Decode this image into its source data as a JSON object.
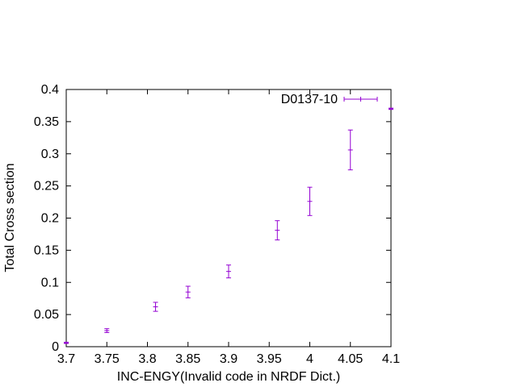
{
  "chart_data": {
    "type": "scatter",
    "title": "",
    "xlabel": "INC-ENGY(Invalid code in NRDF Dict.)",
    "ylabel": "Total Cross section",
    "xlim": [
      3.7,
      4.1
    ],
    "ylim": [
      0,
      0.4
    ],
    "x_ticks": [
      "3.7",
      "3.75",
      "3.8",
      "3.85",
      "3.9",
      "3.95",
      "4",
      "4.05",
      "4.1"
    ],
    "y_ticks": [
      "0",
      "0.05",
      "0.1",
      "0.15",
      "0.2",
      "0.25",
      "0.3",
      "0.35",
      "0.4"
    ],
    "grid": false,
    "legend_position": "top-right",
    "series": [
      {
        "name": "D0137-10",
        "color": "#9400d3",
        "marker": "errorbar",
        "points": [
          {
            "x": 3.7,
            "y": 0.006,
            "yerr": 0.001
          },
          {
            "x": 3.75,
            "y": 0.025,
            "yerr": 0.003
          },
          {
            "x": 3.81,
            "y": 0.062,
            "yerr": 0.007
          },
          {
            "x": 3.85,
            "y": 0.085,
            "yerr": 0.009
          },
          {
            "x": 3.9,
            "y": 0.117,
            "yerr": 0.01
          },
          {
            "x": 3.96,
            "y": 0.181,
            "yerr": 0.015
          },
          {
            "x": 4.0,
            "y": 0.226,
            "yerr": 0.022
          },
          {
            "x": 4.05,
            "y": 0.306,
            "yerr": 0.031
          },
          {
            "x": 4.1,
            "y": 0.37,
            "yerr": 0.001
          }
        ]
      }
    ]
  }
}
